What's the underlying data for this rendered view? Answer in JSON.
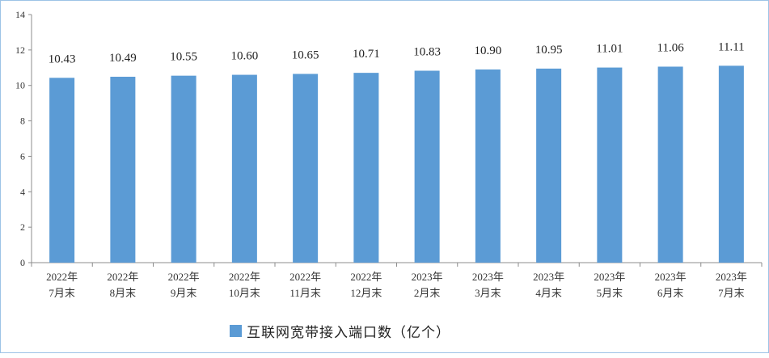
{
  "chart_data": {
    "type": "bar",
    "categories": [
      [
        "2022年",
        "7月末"
      ],
      [
        "2022年",
        "8月末"
      ],
      [
        "2022年",
        "9月末"
      ],
      [
        "2022年",
        "10月末"
      ],
      [
        "2022年",
        "11月末"
      ],
      [
        "2022年",
        "12月末"
      ],
      [
        "2023年",
        "2月末"
      ],
      [
        "2023年",
        "3月末"
      ],
      [
        "2023年",
        "4月末"
      ],
      [
        "2023年",
        "5月末"
      ],
      [
        "2023年",
        "6月末"
      ],
      [
        "2023年",
        "7月末"
      ]
    ],
    "series": [
      {
        "name": "互联网宽带接入端口数（亿个）",
        "values": [
          10.43,
          10.49,
          10.55,
          10.6,
          10.65,
          10.71,
          10.83,
          10.9,
          10.95,
          11.01,
          11.06,
          11.11
        ],
        "labels": [
          "10.43",
          "10.49",
          "10.55",
          "10.60",
          "10.65",
          "10.71",
          "10.83",
          "10.90",
          "10.95",
          "11.01",
          "11.06",
          "11.11"
        ],
        "color": "#5b9bd5"
      }
    ],
    "ylim": [
      0,
      14
    ],
    "yticks": [
      "0",
      "2",
      "4",
      "6",
      "8",
      "10",
      "12",
      "14"
    ],
    "grid": false,
    "legend_position": "bottom-center"
  },
  "legend": {
    "label": "互联网宽带接入端口数（亿个）",
    "color": "#5b9bd5"
  }
}
